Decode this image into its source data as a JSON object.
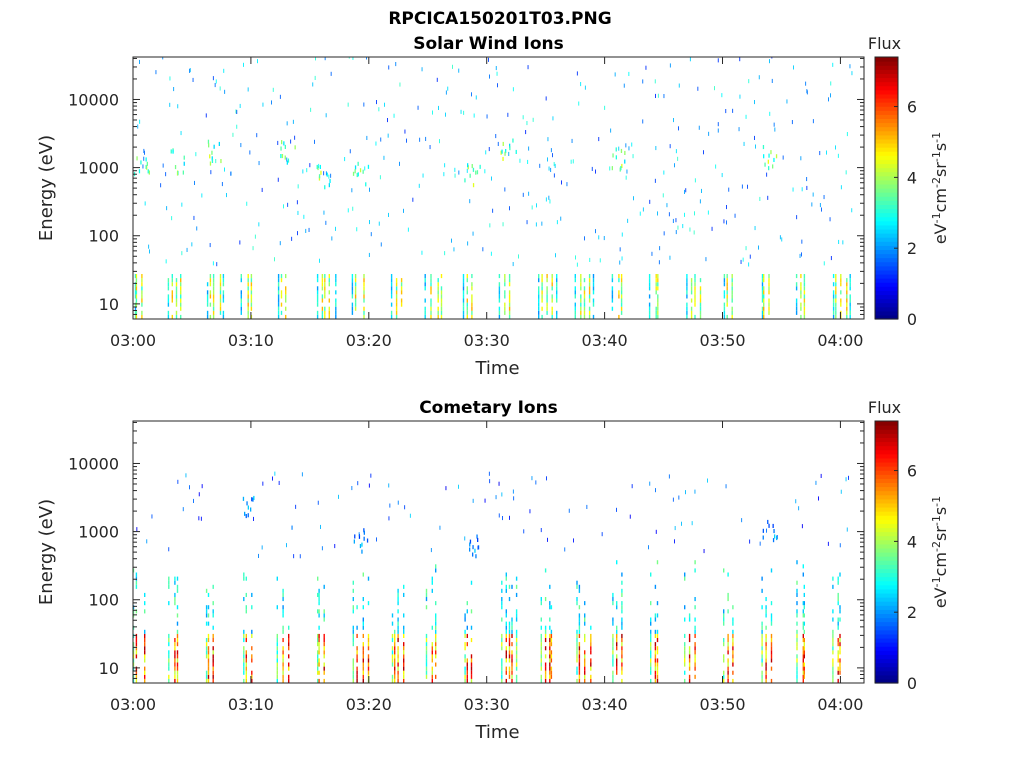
{
  "figure": {
    "filename": "RPCICA150201T03.PNG"
  },
  "colorbar": {
    "label": "Flux",
    "unit_base": "eV",
    "unit_parts": [
      {
        "t": "eV",
        "sup": false
      },
      {
        "t": "-1",
        "sup": true
      },
      {
        "t": "cm",
        "sup": false
      },
      {
        "t": "-2",
        "sup": true
      },
      {
        "t": "sr",
        "sup": false
      },
      {
        "t": "-1",
        "sup": true
      },
      {
        "t": "s",
        "sup": false
      },
      {
        "t": "-1",
        "sup": true
      }
    ],
    "range": [
      0,
      7.4
    ],
    "ticks": [
      "0",
      "2",
      "4",
      "6"
    ],
    "tick_values": [
      0,
      2,
      4,
      6
    ],
    "colormap": "jet"
  },
  "chart_data": [
    {
      "type": "heatmap",
      "title": "Solar Wind Ions",
      "xlabel": "Time",
      "ylabel": "Energy (eV)",
      "yscale": "log",
      "ylim": [
        6,
        42000
      ],
      "xlim": [
        "03:00",
        "04:02"
      ],
      "x_ticks": [
        "03:00",
        "03:10",
        "03:20",
        "03:30",
        "03:40",
        "03:50",
        "04:00"
      ],
      "x_tick_minutes": [
        0,
        10,
        20,
        30,
        40,
        50,
        60
      ],
      "y_ticks": [
        "10",
        "100",
        "1000",
        "10000"
      ],
      "y_tick_values": [
        10,
        100,
        1000,
        10000
      ],
      "scan_times_min": [
        0,
        3.0,
        6.1,
        9.2,
        12.3,
        15.5,
        18.6,
        21.8,
        24.9,
        28.0,
        31.1,
        34.4,
        37.5,
        40.6,
        43.8,
        46.9,
        50.0,
        53.2,
        56.3,
        59.3
      ],
      "low_energy_band": {
        "energy_range_eV": [
          6,
          27
        ],
        "peak_flux": 5.0
      },
      "keV_beam": {
        "energy_range_eV": [
          500,
          2400
        ],
        "peak_flux": 4.5
      },
      "sparse_background_flux": [
        1.2,
        3.2
      ],
      "seed": 7
    },
    {
      "type": "heatmap",
      "title": "Cometary Ions",
      "xlabel": "Time",
      "ylabel": "Energy (eV)",
      "yscale": "log",
      "ylim": [
        6,
        42000
      ],
      "xlim": [
        "03:00",
        "04:02"
      ],
      "x_ticks": [
        "03:00",
        "03:10",
        "03:20",
        "03:30",
        "03:40",
        "03:50",
        "04:00"
      ],
      "x_tick_minutes": [
        0,
        10,
        20,
        30,
        40,
        50,
        60
      ],
      "y_ticks": [
        "10",
        "100",
        "1000",
        "10000"
      ],
      "y_tick_values": [
        10,
        100,
        1000,
        10000
      ],
      "scan_times_min": [
        0,
        3.0,
        6.1,
        9.2,
        12.3,
        15.5,
        18.6,
        21.8,
        24.9,
        28.0,
        31.1,
        34.4,
        37.5,
        40.6,
        43.8,
        46.9,
        50.0,
        53.2,
        56.3,
        59.3
      ],
      "low_energy_band": {
        "energy_range_eV": [
          6,
          30
        ],
        "peak_flux": 6.8
      },
      "mid_energy_band": {
        "energy_range_eV": [
          30,
          350
        ],
        "peak_flux": 3.5
      },
      "keV_beam": {
        "energy_range_eV": [
          500,
          2400
        ],
        "peak_flux": 2.5
      },
      "sparse_background_flux": [
        0.8,
        2.5
      ],
      "seed": 13
    }
  ]
}
